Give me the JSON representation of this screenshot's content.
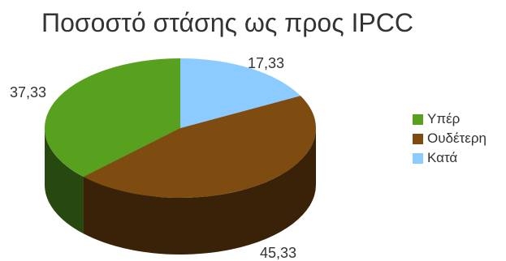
{
  "chart_data": {
    "type": "pie",
    "title": "Ποσοστό στάσης ως προς IPCC",
    "categories": [
      "Υπέρ",
      "Ουδέτερη",
      "Κατά"
    ],
    "values": [
      37.33,
      45.33,
      17.33
    ],
    "data_labels": [
      "37,33",
      "45,33",
      "17,33"
    ],
    "colors": [
      "#57A11F",
      "#7E4B10",
      "#8BCBFF"
    ],
    "legend_position": "right",
    "style": "3d"
  }
}
